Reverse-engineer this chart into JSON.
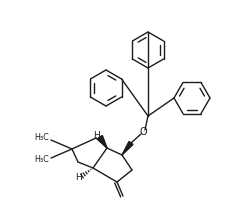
{
  "bg": "#ffffff",
  "fg": "#1c1c1c",
  "lw": 1.0,
  "fig_w": 2.47,
  "fig_h": 2.21,
  "dpi": 100,
  "xlim": [
    0,
    247
  ],
  "ylim": [
    221,
    0
  ]
}
